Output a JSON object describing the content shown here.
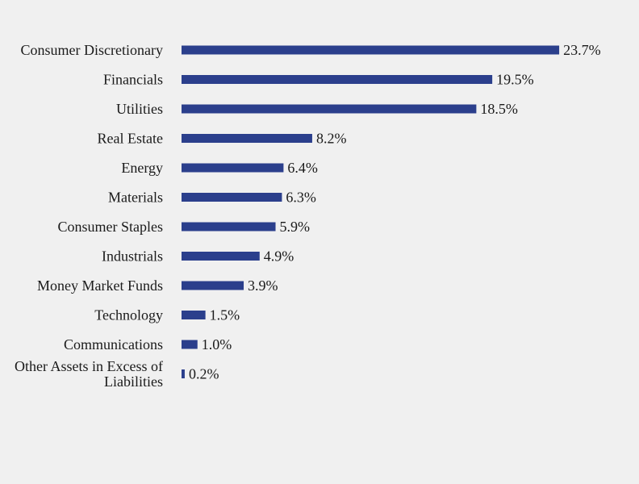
{
  "chart_data": {
    "type": "bar",
    "orientation": "horizontal",
    "categories": [
      "Consumer Discretionary",
      "Financials",
      "Utilities",
      "Real Estate",
      "Energy",
      "Materials",
      "Consumer Staples",
      "Industrials",
      "Money Market Funds",
      "Technology",
      "Communications",
      "Other Assets in Excess of Liabilities"
    ],
    "values": [
      23.7,
      19.5,
      18.5,
      8.2,
      6.4,
      6.3,
      5.9,
      4.9,
      3.9,
      1.5,
      1.0,
      0.2
    ],
    "value_labels": [
      "23.7%",
      "19.5%",
      "18.5%",
      "8.2%",
      "6.4%",
      "6.3%",
      "5.9%",
      "4.9%",
      "3.9%",
      "1.5%",
      "1.0%",
      "0.2%"
    ],
    "unit": "%",
    "grid": false,
    "legend": "none",
    "bar_color": "#2b3f8c",
    "background_color": "#f0f0f0"
  }
}
